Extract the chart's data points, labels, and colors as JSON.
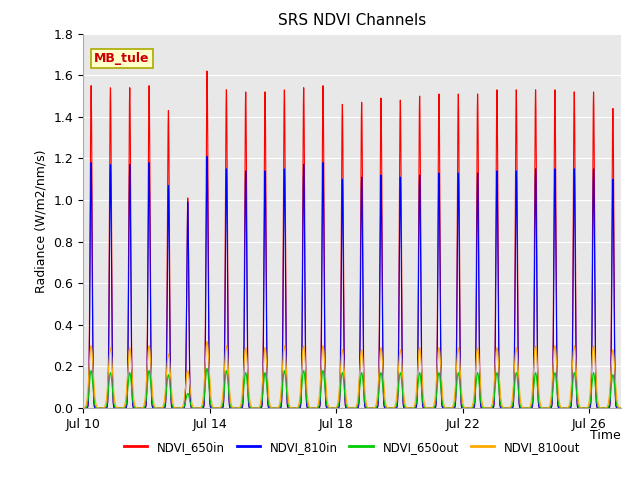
{
  "title": "SRS NDVI Channels",
  "xlabel": "Time",
  "ylabel": "Radiance (W/m2/nm/s)",
  "ylim": [
    0.0,
    1.8
  ],
  "yticks": [
    0.0,
    0.2,
    0.4,
    0.6,
    0.8,
    1.0,
    1.2,
    1.4,
    1.6,
    1.8
  ],
  "xtick_days": [
    10,
    14,
    18,
    22,
    26
  ],
  "xtick_labels": [
    "Jul 10",
    "Jul 14",
    "Jul 18",
    "Jul 22",
    "Jul 26"
  ],
  "annotation_text": "MB_tule",
  "annotation_color": "#cc0000",
  "annotation_bg": "#ffffcc",
  "annotation_edge": "#aaaa00",
  "line_colors": {
    "NDVI_650in": "#ff0000",
    "NDVI_810in": "#0000ff",
    "NDVI_650out": "#00cc00",
    "NDVI_810out": "#ffaa00"
  },
  "legend_labels": [
    "NDVI_650in",
    "NDVI_810in",
    "NDVI_650out",
    "NDVI_810out"
  ],
  "plot_bg": "#e8e8e8",
  "grid_color": "#ffffff",
  "start_day": 10,
  "end_day": 27,
  "peak_heights_650in": [
    1.55,
    1.54,
    1.54,
    1.55,
    1.43,
    1.01,
    1.62,
    1.53,
    1.52,
    1.52,
    1.53,
    1.54,
    1.55,
    1.46,
    1.47,
    1.49,
    1.48,
    1.5,
    1.51,
    1.51,
    1.51,
    1.53,
    1.53,
    1.53,
    1.53,
    1.52,
    1.52,
    1.44
  ],
  "peak_heights_810in": [
    1.18,
    1.17,
    1.17,
    1.18,
    1.07,
    0.99,
    1.21,
    1.15,
    1.14,
    1.14,
    1.15,
    1.17,
    1.18,
    1.1,
    1.11,
    1.12,
    1.11,
    1.12,
    1.13,
    1.13,
    1.13,
    1.14,
    1.14,
    1.15,
    1.15,
    1.15,
    1.15,
    1.1
  ],
  "peak_heights_650out": [
    0.18,
    0.17,
    0.17,
    0.18,
    0.16,
    0.07,
    0.19,
    0.18,
    0.17,
    0.17,
    0.18,
    0.18,
    0.18,
    0.17,
    0.17,
    0.17,
    0.17,
    0.17,
    0.17,
    0.17,
    0.17,
    0.17,
    0.17,
    0.17,
    0.17,
    0.17,
    0.17,
    0.16
  ],
  "peak_heights_810out": [
    0.3,
    0.29,
    0.29,
    0.3,
    0.26,
    0.18,
    0.32,
    0.3,
    0.29,
    0.29,
    0.3,
    0.3,
    0.3,
    0.28,
    0.28,
    0.29,
    0.28,
    0.29,
    0.29,
    0.29,
    0.29,
    0.29,
    0.29,
    0.3,
    0.3,
    0.3,
    0.3,
    0.28
  ]
}
